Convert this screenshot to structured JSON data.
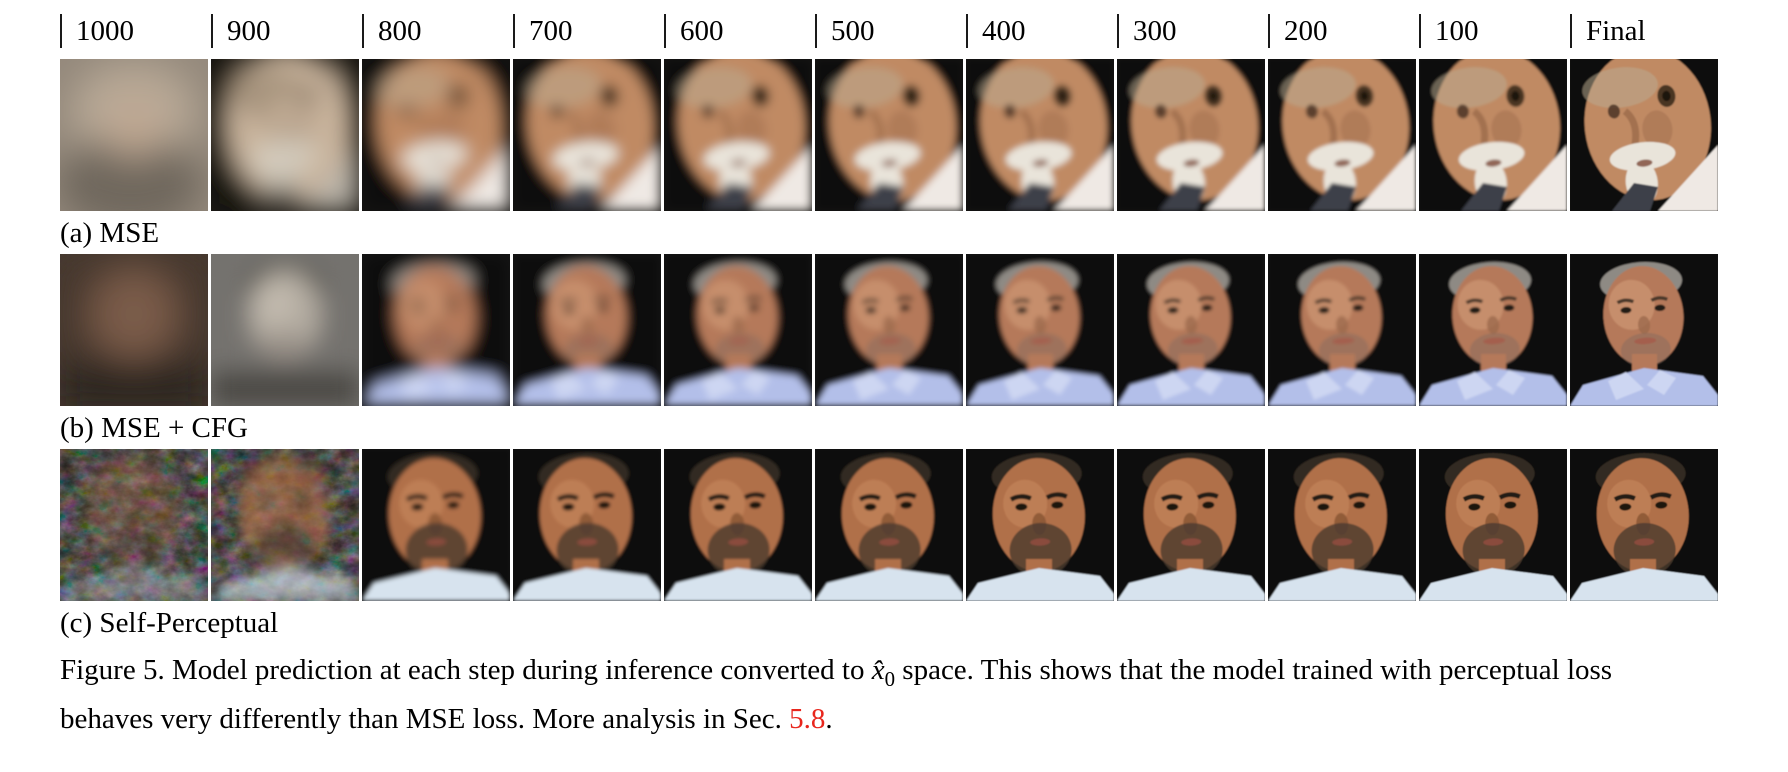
{
  "figure": {
    "steps": [
      "1000",
      "900",
      "800",
      "700",
      "600",
      "500",
      "400",
      "300",
      "200",
      "100",
      "Final"
    ],
    "rows": [
      {
        "key": "mse",
        "label": "(a) MSE",
        "variant": "elder",
        "blurs": [
          18,
          13,
          9,
          6.5,
          5,
          4,
          3.2,
          2.5,
          1.9,
          1.3,
          0.8
        ],
        "cell_types": [
          "flat",
          "pale",
          "face",
          "face",
          "face",
          "face",
          "face",
          "face",
          "face",
          "face",
          "face"
        ],
        "palette": {
          "bg": "#0d0c0a",
          "skin": "#c08a64",
          "hair": "#b9a98e",
          "eyeRing": "#4a3424",
          "eye": "#1d120c",
          "shade": "#8a5c3e",
          "mustache": "#e9e4da",
          "mouth": "#7a4636",
          "shirt": "#efe9e4",
          "tie": "#3c3f49"
        },
        "flat": {
          "base": "#94897c",
          "light": "#b6a795",
          "mid": "#bfa893",
          "dark": "#6f675d"
        },
        "pale": {
          "bg": "#17140f",
          "skin": "#c9b49c",
          "hair": "#8a7a66",
          "eyeRing": "#6f5e4c",
          "eye": "#4a3c30",
          "shade": "#8d7a66",
          "mustache": "#d8d2c4",
          "mouth": "#8a6a58",
          "shirt": "#b8b2a8",
          "tie": "#5a554e"
        }
      },
      {
        "key": "mse_cfg",
        "label": "(b) MSE + CFG",
        "variant": "gray",
        "blurs": [
          18,
          12,
          7.5,
          5,
          3.8,
          3,
          2.4,
          1.9,
          1.5,
          1.1,
          0.8
        ],
        "cell_types": [
          "flat",
          "pale",
          "face",
          "face",
          "face",
          "face",
          "face",
          "face",
          "face",
          "face",
          "face"
        ],
        "palette": {
          "bg": "#0e0e0e",
          "skin": "#b5795a",
          "skinHi": "#d8a47d",
          "hair": "#8e8a84",
          "brow": "#4a382c",
          "eye": "#241a14",
          "nose": "#9c6a4c",
          "beard": "#7c6a5e",
          "mouth": "#a45f4e",
          "shirt": "#b3bfe9",
          "collar": "#cdd6f2"
        },
        "flat": {
          "base": "#46392f",
          "face": "#7a5c4a",
          "bottom": "#27211c"
        },
        "pale": {
          "bg": "#74726e",
          "hair": "#57544e",
          "face": "#b2aba0",
          "faceHi": "#c8bfb2",
          "bottom": "#4b4844",
          "chin": "#8a8078"
        }
      },
      {
        "key": "self_perceptual",
        "label": "(c) Self-Perceptual",
        "variant": "beard",
        "blurs": [
          7,
          6,
          2.2,
          1.6,
          1.3,
          1,
          0.9,
          0.8,
          0.7,
          0.6,
          0.5
        ],
        "cell_types": [
          "noise",
          "noise",
          "face",
          "face",
          "face",
          "face",
          "face",
          "face",
          "face",
          "face",
          "face"
        ],
        "palette": {
          "bg": "#0b0b0b",
          "skin": "#b07049",
          "skinHi": "#cf9064",
          "hair": "#332921",
          "brow": "#241a12",
          "eye": "#1d140e",
          "nose": "#8a5634",
          "beard": "#4a3a2e",
          "mouth": "#8a4b3c",
          "shirt": "#d7e3ee"
        },
        "noise": {
          "seeds": [
            11,
            29
          ],
          "mute": "#3f3a30",
          "face_opacity": [
            0.35,
            0.65
          ]
        }
      }
    ],
    "caption": {
      "prefix": "Figure 5. Model prediction at each step during inference converted to ",
      "math_base": "x̂",
      "math_sub": "0",
      "middle": " space. This shows that the model trained with perceptual loss",
      "line2": "behaves very differently than MSE loss. More analysis in Sec. ",
      "link": "5.8",
      "suffix": ".",
      "link_color": "#e8261d",
      "text_color": "#000000"
    }
  }
}
